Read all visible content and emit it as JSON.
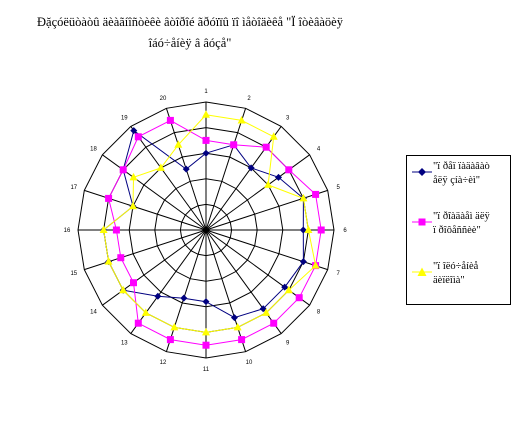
{
  "chart_data": {
    "type": "radar",
    "title_lines": [
      "Đặçóëüòàòû äèàãíîñòèêè âòîðîé ãðóïïû ïî ìåòîäèêå \"Ï îòèâàöèÿ",
      "îáó÷åíèÿ â âóçå\""
    ],
    "axes": [
      "1",
      "2",
      "3",
      "4",
      "5",
      "6",
      "7",
      "8",
      "9",
      "10",
      "11",
      "12",
      "13",
      "14",
      "15",
      "16",
      "17",
      "18",
      "19",
      "20"
    ],
    "rlim": [
      0,
      5
    ],
    "rings": 5,
    "series": [
      {
        "name_lines": [
          "\"ï ðåï ïàäàâàò",
          "åëÿ çíà÷èì\""
        ],
        "color": "#000080",
        "marker": "diamond",
        "values": [
          3.0,
          3.5,
          3.0,
          3.5,
          4.0,
          3.8,
          4.0,
          3.8,
          3.8,
          3.6,
          2.8,
          2.8,
          3.2,
          4.0,
          4.0,
          4.0,
          3.0,
          4.0,
          4.8,
          2.5
        ]
      },
      {
        "name_lines": [
          "\"ï ðîàäàåì äëÿ",
          "ï ðîôåññèè\""
        ],
        "color": "#ff00ff",
        "marker": "square",
        "values": [
          3.5,
          3.5,
          4.0,
          4.0,
          4.5,
          4.5,
          4.5,
          4.5,
          4.5,
          4.5,
          4.5,
          4.5,
          4.5,
          3.5,
          3.5,
          3.5,
          4.0,
          4.0,
          4.5,
          4.5
        ]
      },
      {
        "name_lines": [
          "\"ï îëó÷åíèå",
          "äèïëîìà\""
        ],
        "color": "#ffff00",
        "marker": "triangle",
        "values": [
          4.5,
          4.5,
          4.5,
          3.0,
          4.0,
          4.0,
          4.5,
          4.0,
          4.0,
          4.0,
          4.0,
          4.0,
          4.0,
          4.0,
          4.0,
          4.0,
          3.0,
          3.5,
          3.0,
          3.5
        ]
      }
    ]
  }
}
